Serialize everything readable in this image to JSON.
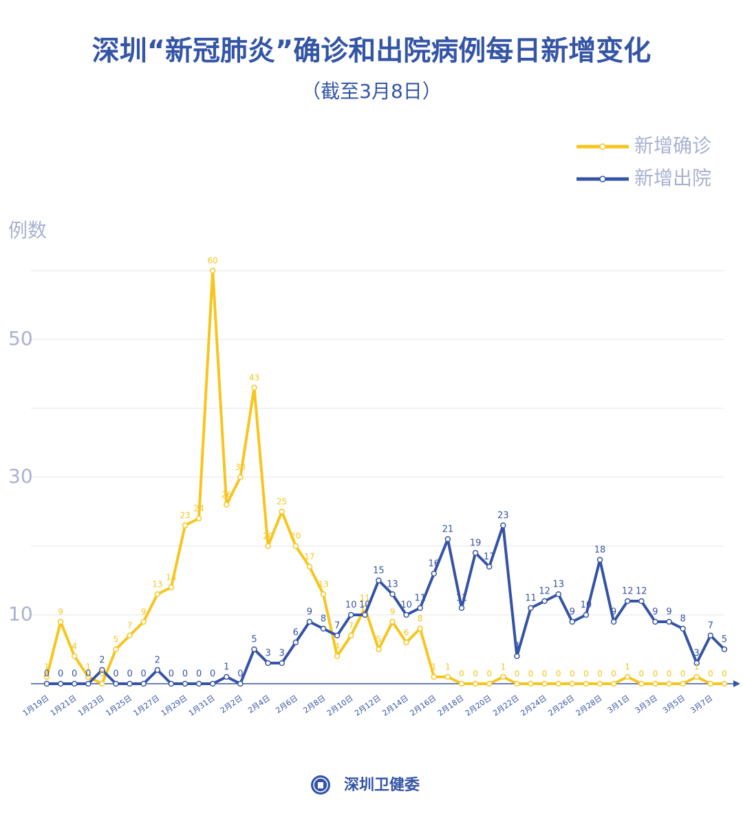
{
  "chart_data": {
    "type": "line",
    "title": "深圳“新冠肺炎”确诊和出院病例每日新增变化",
    "subtitle": "（截至3月8日）",
    "y_label": "例数",
    "footer": "深圳卫健委",
    "categories": [
      "1月19日",
      null,
      "1月21日",
      null,
      "1月23日",
      null,
      "1月25日",
      null,
      "1月27日",
      null,
      "1月29日",
      null,
      "1月31日",
      null,
      "2月2日",
      null,
      "2月4日",
      null,
      "2月6日",
      null,
      "2月8日",
      null,
      "2月10日",
      null,
      "2月12日",
      null,
      "2月14日",
      null,
      "2月16日",
      null,
      "2月18日",
      null,
      "2月20日",
      null,
      "2月22日",
      null,
      "2月24日",
      null,
      "2月26日",
      null,
      "2月28日",
      null,
      "3月1日",
      null,
      "3月3日",
      null,
      "3月5日",
      null,
      "3月7日",
      null
    ],
    "series": [
      {
        "name": "新增确诊",
        "color": "#f7c51c",
        "values": [
          1,
          9,
          4,
          1,
          0,
          5,
          7,
          9,
          13,
          14,
          23,
          24,
          60,
          26,
          30,
          43,
          20,
          25,
          20,
          17,
          13,
          4,
          7,
          11,
          5,
          9,
          6,
          8,
          1,
          1,
          0,
          0,
          0,
          1,
          0,
          0,
          0,
          0,
          0,
          0,
          0,
          0,
          1,
          0,
          0,
          0,
          0,
          1,
          0,
          0
        ]
      },
      {
        "name": "新增出院",
        "color": "#3553a5",
        "values": [
          0,
          0,
          0,
          0,
          2,
          0,
          0,
          0,
          2,
          0,
          0,
          0,
          0,
          1,
          0,
          5,
          3,
          3,
          6,
          9,
          8,
          7,
          10,
          10,
          15,
          13,
          10,
          11,
          16,
          21,
          11,
          19,
          17,
          23,
          4,
          11,
          12,
          13,
          9,
          10,
          18,
          9,
          12,
          12,
          9,
          9,
          8,
          3,
          7,
          5
        ]
      }
    ],
    "ylim": [
      0,
      60
    ],
    "yticks": [
      10,
      30,
      50
    ],
    "grid_lines": [
      10,
      20,
      30,
      40,
      50,
      60
    ],
    "legend": "top-right"
  }
}
